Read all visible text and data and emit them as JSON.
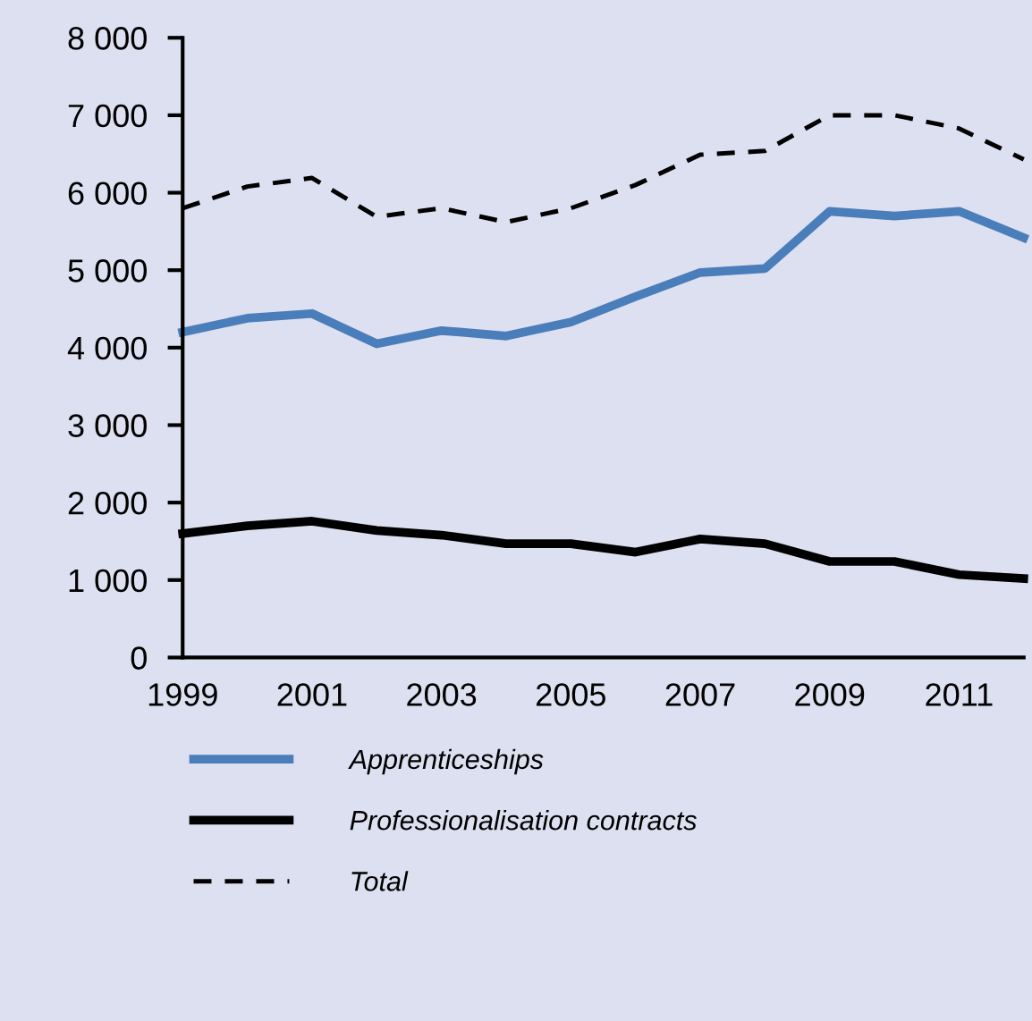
{
  "chart_data": {
    "type": "line",
    "x": [
      1999,
      2000,
      2001,
      2002,
      2003,
      2004,
      2005,
      2006,
      2007,
      2008,
      2009,
      2010,
      2011,
      2012
    ],
    "series": [
      {
        "name": "Apprenticeships",
        "color": "#4a7ebb",
        "line_style": "solid",
        "values": [
          4200,
          4380,
          4440,
          4050,
          4220,
          4150,
          4330,
          4660,
          4970,
          5020,
          5760,
          5700,
          5760,
          5420
        ]
      },
      {
        "name": "Professionalisation contracts",
        "color": "#000000",
        "line_style": "solid",
        "values": [
          1600,
          1700,
          1760,
          1640,
          1580,
          1470,
          1470,
          1360,
          1530,
          1470,
          1240,
          1240,
          1070,
          1020
        ]
      },
      {
        "name": "Total",
        "color": "#000000",
        "line_style": "dashed",
        "values": [
          5800,
          6080,
          6190,
          5690,
          5800,
          5620,
          5800,
          6100,
          6490,
          6540,
          7000,
          7000,
          6830,
          6430
        ]
      }
    ],
    "xlim": [
      1999,
      2012
    ],
    "xticks": [
      1999,
      2001,
      2003,
      2005,
      2007,
      2009,
      2011
    ],
    "ylim": [
      0,
      8000
    ],
    "yticks": [
      0,
      {
        "value": 1000,
        "label": "1 000"
      },
      {
        "value": 2000,
        "label": "2 000"
      },
      {
        "value": 3000,
        "label": "3 000"
      },
      {
        "value": 4000,
        "label": "4 000"
      },
      {
        "value": 5000,
        "label": "5 000"
      },
      {
        "value": 6000,
        "label": "6 000"
      },
      {
        "value": 7000,
        "label": "7 000"
      },
      {
        "value": 8000,
        "label": "8 000"
      }
    ],
    "grid": false,
    "legend": "bottom",
    "marker": "none"
  }
}
